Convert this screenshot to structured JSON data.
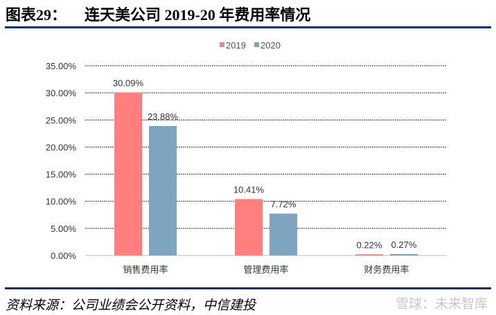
{
  "header": {
    "label": "图表29：",
    "title": "连天美公司 2019-20 年费用率情况"
  },
  "footer": {
    "source": "资料来源：公司业绩会公开资料，中信建投",
    "watermark": "雪球：未来智库"
  },
  "chart_data": {
    "type": "bar",
    "categories": [
      "销售费用率",
      "管理费用率",
      "财务费用率"
    ],
    "series": [
      {
        "name": "2019",
        "values": [
          30.09,
          10.41,
          0.22
        ],
        "labels": [
          "30.09%",
          "10.41%",
          "0.22%"
        ],
        "color": "#ff7f7f"
      },
      {
        "name": "2020",
        "values": [
          23.88,
          7.72,
          0.27
        ],
        "labels": [
          "23.88%",
          "7.72%",
          "0.27%"
        ],
        "color": "#7fa4bf"
      }
    ],
    "yticks": [
      "0.00%",
      "5.00%",
      "10.00%",
      "15.00%",
      "20.00%",
      "25.00%",
      "30.00%",
      "35.00%"
    ],
    "ylim": [
      0,
      35
    ],
    "grid": true,
    "legend": "top"
  }
}
